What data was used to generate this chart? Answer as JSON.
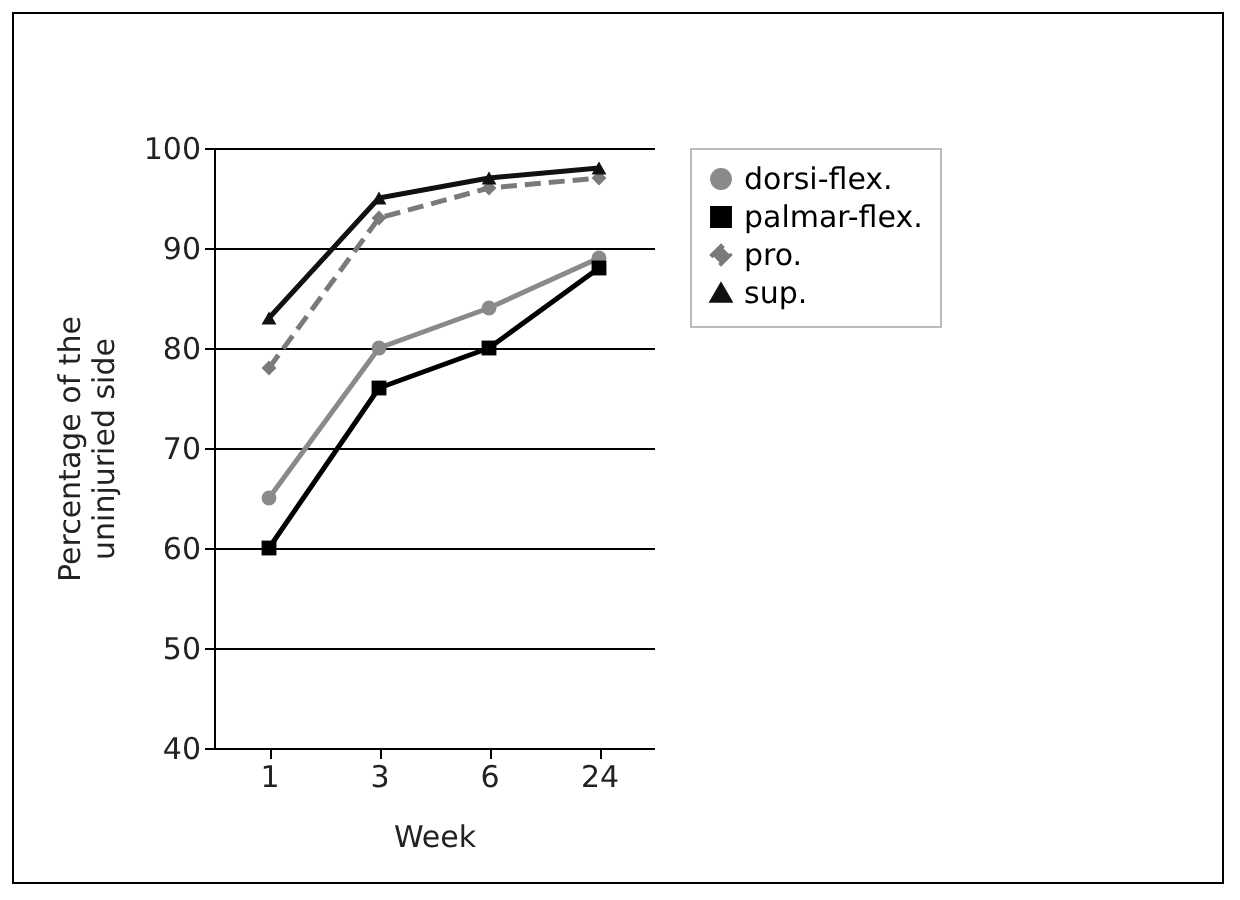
{
  "chart_data": {
    "type": "line",
    "xlabel": "Week",
    "ylabel": "Percentage of the\nuninjuried side",
    "categories": [
      "1",
      "3",
      "6",
      "24"
    ],
    "ylim": [
      40,
      100
    ],
    "yticks": [
      40,
      50,
      60,
      70,
      80,
      90,
      100
    ],
    "grid": "y",
    "legend": "right",
    "series": [
      {
        "name": "dorsi-flex.",
        "color": "#8a8a8a",
        "marker": "circle",
        "line_style": "solid",
        "values": [
          65,
          80,
          84,
          89
        ]
      },
      {
        "name": "palmar-flex.",
        "color": "#000000",
        "marker": "square",
        "line_style": "solid",
        "values": [
          60,
          76,
          80,
          88
        ]
      },
      {
        "name": "pro.",
        "color": "#7a7a7a",
        "marker": "diamond",
        "line_style": "dashed",
        "values": [
          78,
          93,
          96,
          97
        ]
      },
      {
        "name": "sup.",
        "color": "#111111",
        "marker": "triangle",
        "line_style": "solid",
        "values": [
          83,
          95,
          97,
          98
        ]
      }
    ]
  }
}
